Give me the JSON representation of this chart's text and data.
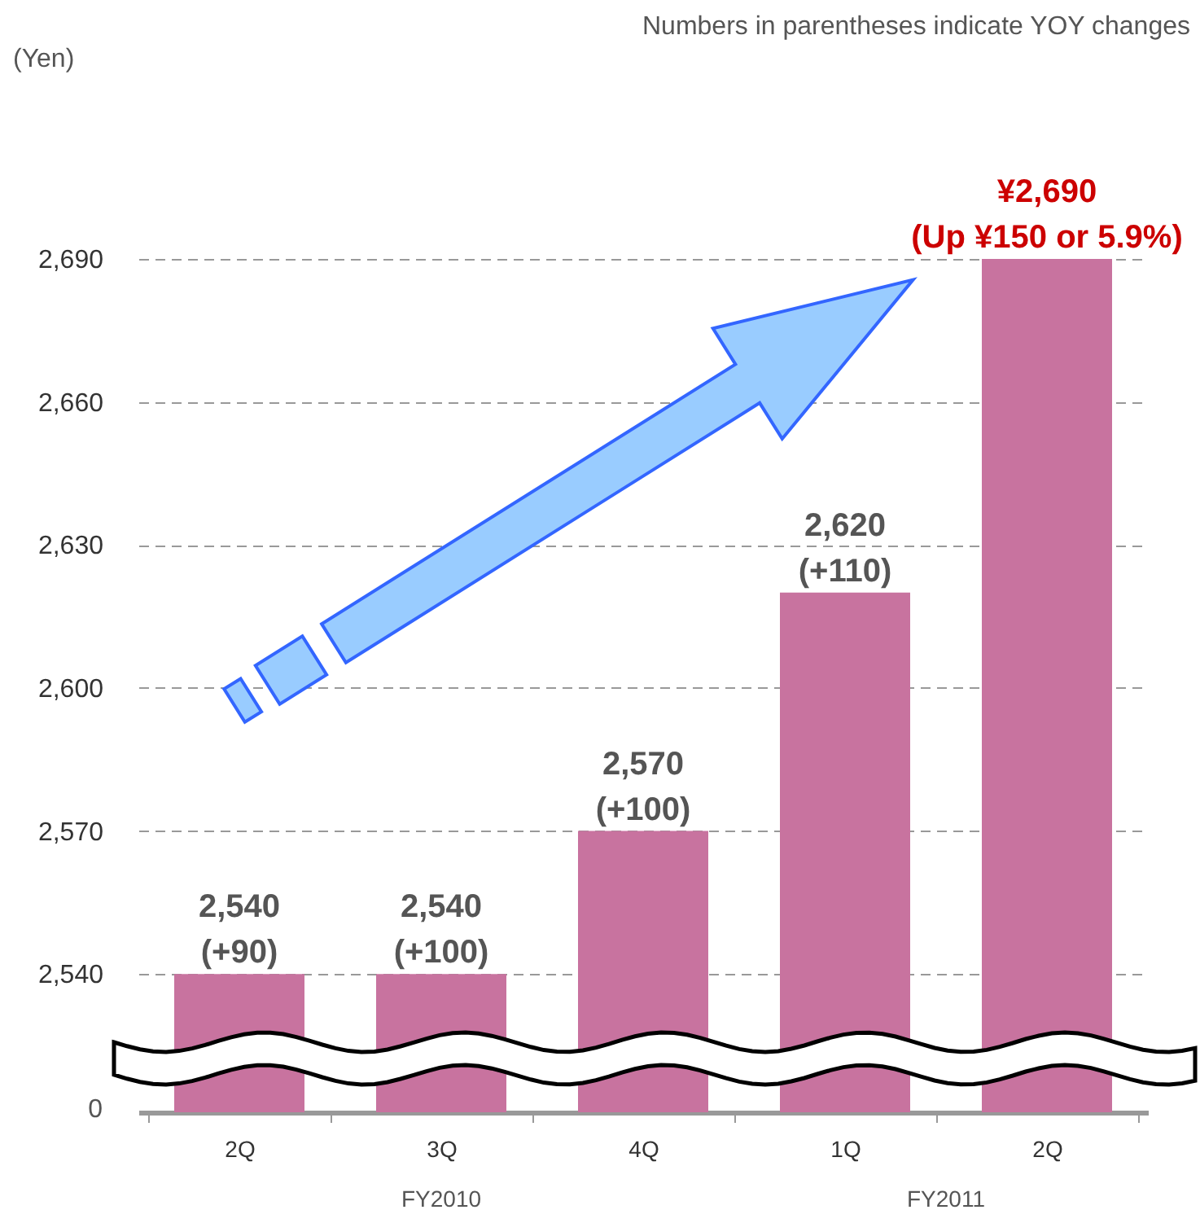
{
  "chart_data": {
    "type": "bar",
    "categories": [
      "2Q",
      "3Q",
      "4Q",
      "1Q",
      "2Q"
    ],
    "values": [
      2540,
      2540,
      2570,
      2620,
      2690
    ],
    "value_labels": [
      "2,540\n(+90)",
      "2,540\n(+100)",
      "2,570\n(+100)",
      "2,620\n(+110)",
      "¥2,690\n(Up ¥150 or 5.9%)"
    ],
    "color": "#c8739f",
    "ylim": [
      2511,
      2690
    ],
    "yticks": [
      {
        "value": 2540,
        "label": "2,540"
      },
      {
        "value": 2570,
        "label": "2,570"
      },
      {
        "value": 2600,
        "label": "2,600"
      },
      {
        "value": 2630,
        "label": "2,630"
      },
      {
        "value": 2660,
        "label": "2,660"
      },
      {
        "value": 2690,
        "label": "2,690"
      }
    ],
    "grid": "y",
    "annotations": [
      "Numbers in parentheses indicate YOY changes",
      "FY2010",
      "FY2011",
      "(Yen)",
      "0"
    ]
  }
}
